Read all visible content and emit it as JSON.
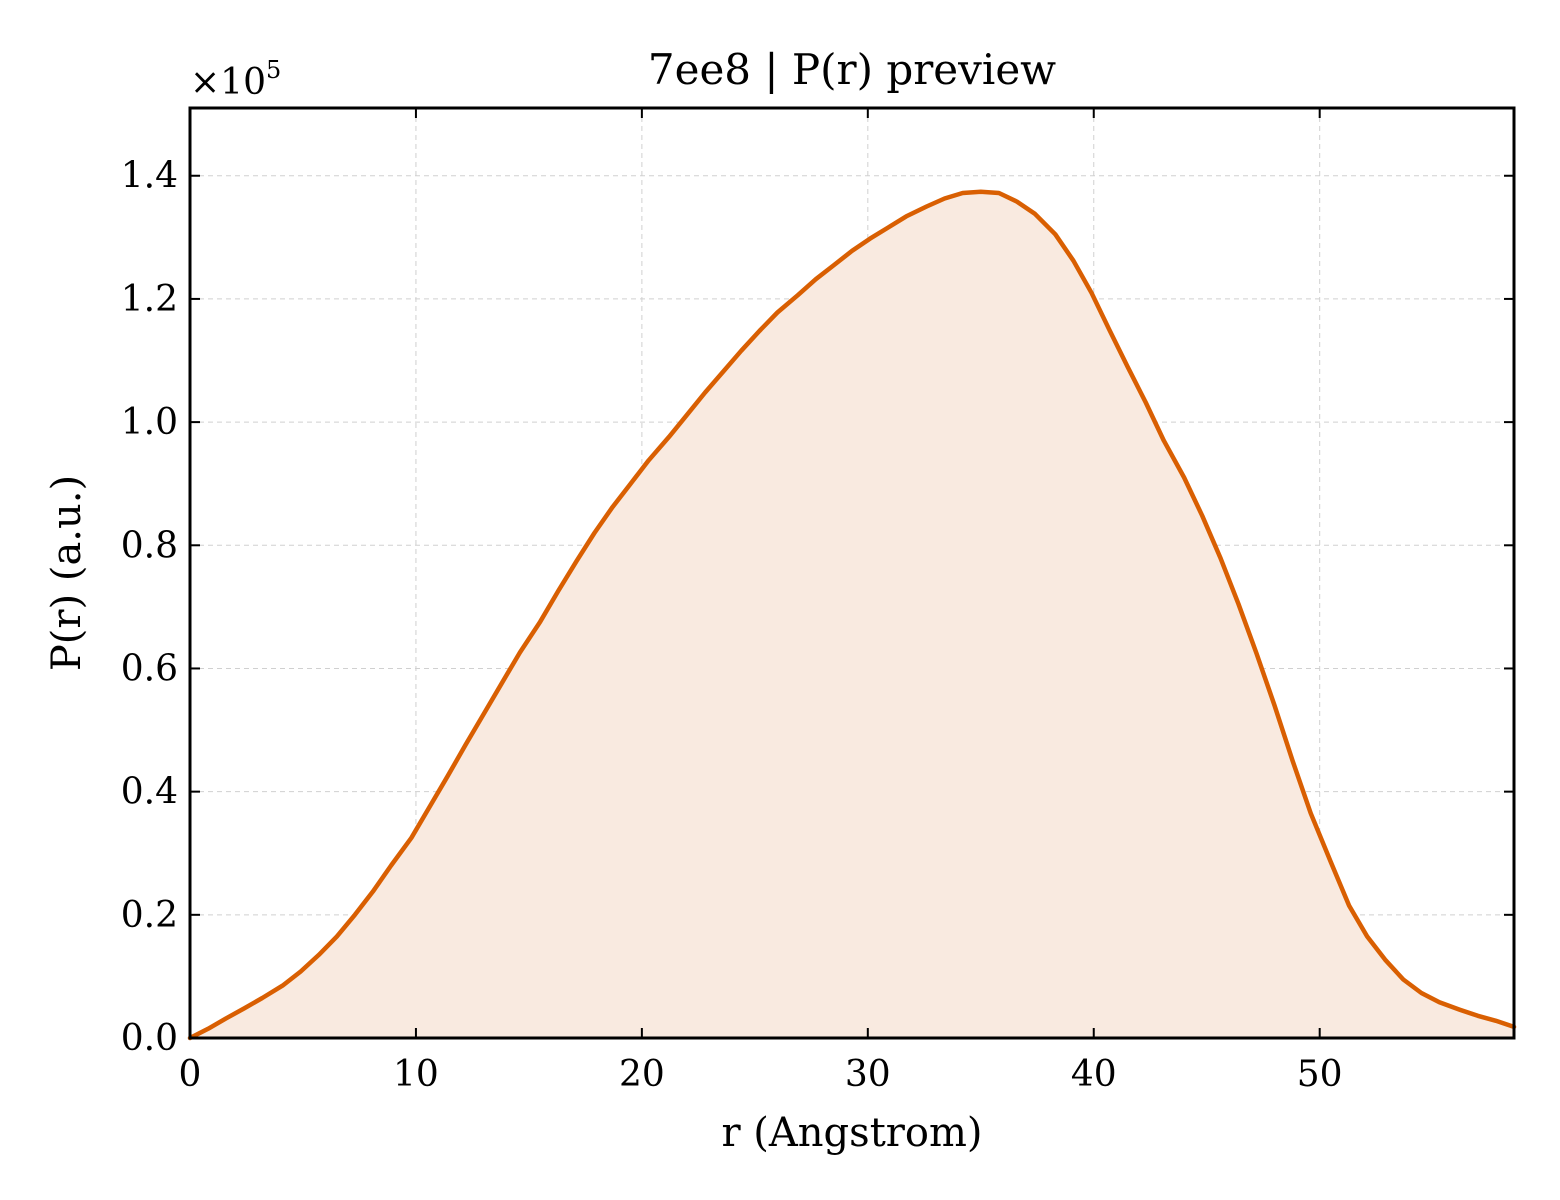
{
  "chart_data": {
    "type": "area",
    "title": "7ee8 | P(r) preview",
    "xlabel": "r (Angstrom)",
    "ylabel": "P(r) (a.u.)",
    "y_multiplier_prefix": "×10",
    "y_multiplier_exponent": "5",
    "xlim": [
      0,
      58.6
    ],
    "ylim": [
      0,
      1.51
    ],
    "x_ticks": [
      0,
      10,
      20,
      30,
      40,
      50
    ],
    "x_tick_labels": [
      "0",
      "10",
      "20",
      "30",
      "40",
      "50"
    ],
    "y_ticks": [
      0.0,
      0.2,
      0.4,
      0.6,
      0.8,
      1.0,
      1.2,
      1.4
    ],
    "y_tick_labels": [
      "0.0",
      "0.2",
      "0.4",
      "0.6",
      "0.8",
      "1.0",
      "1.2",
      "1.4"
    ],
    "grid": true,
    "line_color": "#d95f02",
    "fill_color": "#f9eae0",
    "series": [
      {
        "x": [
          0,
          0.8,
          1.6,
          2.4,
          3.2,
          4.1,
          4.9,
          5.7,
          6.5,
          7.3,
          8.1,
          8.9,
          9.8,
          10.6,
          11.4,
          12.2,
          13.0,
          13.8,
          14.6,
          15.5,
          16.3,
          17.1,
          17.9,
          18.7,
          19.5,
          20.3,
          21.2,
          22.0,
          22.8,
          23.6,
          24.4,
          25.2,
          26.0,
          26.9,
          27.7,
          28.5,
          29.3,
          30.1,
          30.9,
          31.7,
          32.6,
          33.4,
          34.2,
          35.0,
          35.8,
          36.6,
          37.4,
          38.3,
          39.1,
          39.9,
          40.7,
          41.5,
          42.3,
          43.1,
          44.0,
          44.8,
          45.6,
          46.4,
          47.2,
          48.0,
          48.8,
          49.6,
          50.5,
          51.3,
          52.1,
          52.9,
          53.7,
          54.5,
          55.3,
          56.2,
          57.0,
          57.8,
          58.6
        ],
        "y": [
          0.0,
          0.015,
          0.032,
          0.048,
          0.065,
          0.085,
          0.108,
          0.135,
          0.165,
          0.2,
          0.238,
          0.28,
          0.325,
          0.375,
          0.425,
          0.476,
          0.526,
          0.576,
          0.626,
          0.676,
          0.726,
          0.774,
          0.82,
          0.862,
          0.9,
          0.938,
          0.976,
          1.012,
          1.048,
          1.082,
          1.116,
          1.148,
          1.178,
          1.206,
          1.232,
          1.255,
          1.278,
          1.298,
          1.316,
          1.334,
          1.35,
          1.363,
          1.372,
          1.374,
          1.372,
          1.358,
          1.338,
          1.305,
          1.262,
          1.21,
          1.149,
          1.09,
          1.032,
          0.97,
          0.91,
          0.848,
          0.78,
          0.705,
          0.625,
          0.54,
          0.45,
          0.365,
          0.285,
          0.215,
          0.165,
          0.127,
          0.095,
          0.073,
          0.058,
          0.046,
          0.036,
          0.028,
          0.018
        ]
      }
    ]
  }
}
